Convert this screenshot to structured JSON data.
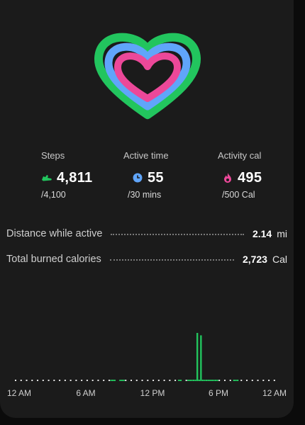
{
  "stats": {
    "steps": {
      "label": "Steps",
      "value": "4,811",
      "goal": "/4,100",
      "icon": "shoe-icon",
      "color": "#22c55e"
    },
    "active_time": {
      "label": "Active time",
      "value": "55",
      "goal": "/30 mins",
      "icon": "clock-icon",
      "color": "#60a5fa"
    },
    "activity_cal": {
      "label": "Activity cal",
      "value": "495",
      "goal": "/500 Cal",
      "icon": "flame-icon",
      "color": "#ec4899"
    }
  },
  "details": {
    "distance": {
      "label": "Distance while active",
      "value": "2.14",
      "unit": "mi"
    },
    "calories": {
      "label": "Total burned calories",
      "value": "2,723",
      "unit": "Cal"
    }
  },
  "rings": {
    "outer_color": "#22c55e",
    "middle_color": "#60a5fa",
    "inner_color": "#ec4899",
    "track_color": "#2a2a2a"
  },
  "chart_data": {
    "type": "bar",
    "series": [
      {
        "name": "",
        "values": [
          0,
          0,
          0,
          0,
          0,
          0,
          0,
          0,
          0,
          0,
          0,
          0,
          0,
          0,
          0,
          0,
          0,
          0,
          0,
          0,
          0,
          0,
          0,
          0,
          0,
          0,
          0,
          0,
          0,
          0,
          0,
          0,
          0,
          0,
          0,
          0,
          0,
          0,
          0,
          0,
          0,
          0,
          0,
          0,
          0,
          0,
          0,
          0,
          0,
          0,
          0,
          0,
          1,
          1,
          1,
          0,
          0,
          1,
          1,
          1,
          0,
          0,
          0,
          0,
          0,
          0,
          0,
          0,
          0,
          0,
          0,
          0,
          0,
          0,
          0,
          0,
          0,
          0,
          0,
          0,
          0,
          0,
          0,
          0,
          0,
          0,
          0,
          0,
          0,
          1,
          1,
          0,
          0,
          0,
          1,
          1,
          1,
          3,
          3,
          100,
          3,
          95,
          3,
          1,
          1,
          1,
          2,
          1,
          1,
          1,
          1,
          0,
          0,
          0,
          0,
          0,
          0,
          0,
          0,
          1,
          1,
          1,
          0,
          0,
          0,
          0,
          0,
          0,
          0,
          0,
          0,
          0,
          0,
          0,
          0,
          0,
          0,
          0,
          0,
          0,
          0,
          0,
          0,
          0
        ]
      }
    ],
    "color": "#22c55e",
    "empty_color": "#e5e5e5",
    "tick_labels": [
      "12 AM",
      "6 AM",
      "12 PM",
      "6 PM",
      "12 AM"
    ],
    "ylim": [
      0,
      100
    ]
  }
}
